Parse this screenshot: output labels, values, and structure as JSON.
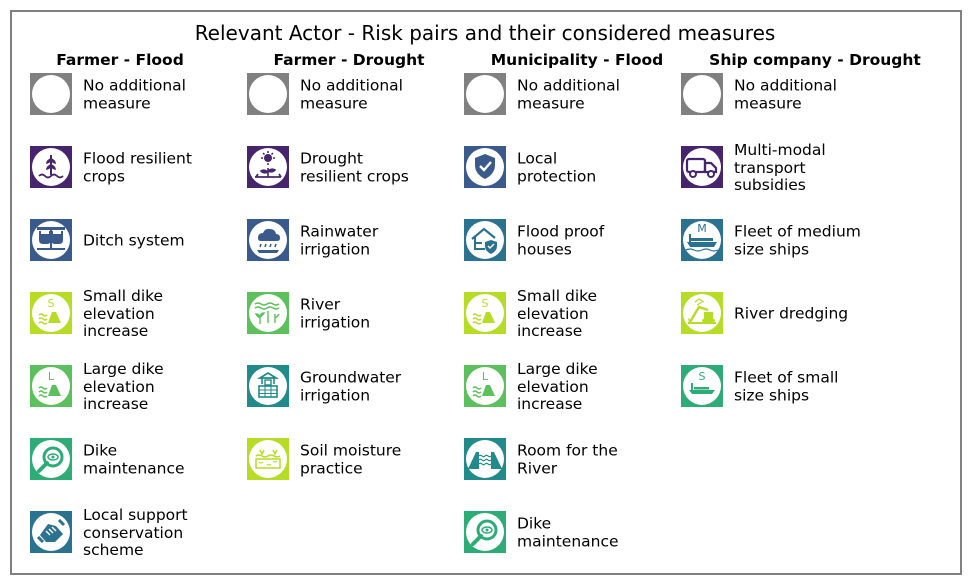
{
  "title": "Relevant Actor - Risk pairs and their considered measures",
  "colors": {
    "none": "#808080",
    "purple": "#46256d",
    "blue": "#3b5a8c",
    "teal": "#2b7290",
    "tealgreen": "#218a8a",
    "green": "#2eac78",
    "lightgreen": "#5cc05c",
    "yellow": "#b6dc26"
  },
  "columns": [
    {
      "header": "Farmer - Flood",
      "measures": [
        {
          "label": "No additional\nmeasure",
          "color": "#808080",
          "icon": "empty-circle-icon"
        },
        {
          "label": "Flood resilient\ncrops",
          "color": "#46256d",
          "icon": "wheat-water-icon"
        },
        {
          "label": "Ditch system",
          "color": "#3b5a8c",
          "icon": "ditch-icon"
        },
        {
          "label": "Small dike\nelevation\nincrease",
          "color": "#b6dc26",
          "icon": "small-dike-icon",
          "glyph": "S"
        },
        {
          "label": "Large dike\nelevation\nincrease",
          "color": "#5cc05c",
          "icon": "large-dike-icon",
          "glyph": "L"
        },
        {
          "label": "Dike\nmaintenance",
          "color": "#2eac78",
          "icon": "dike-inspection-icon"
        },
        {
          "label": "Local support\nconservation\nscheme",
          "color": "#2b7290",
          "icon": "handshake-icon"
        }
      ]
    },
    {
      "header": "Farmer - Drought",
      "measures": [
        {
          "label": "No additional\nmeasure",
          "color": "#808080",
          "icon": "empty-circle-icon"
        },
        {
          "label": "Drought\nresilient crops",
          "color": "#46256d",
          "icon": "sun-plant-icon"
        },
        {
          "label": "Rainwater\nirrigation",
          "color": "#3b5a8c",
          "icon": "rain-cloud-icon"
        },
        {
          "label": "River\nirrigation",
          "color": "#5cc05c",
          "icon": "river-irrigation-icon"
        },
        {
          "label": "Groundwater\nirrigation",
          "color": "#218a8a",
          "icon": "well-icon"
        },
        {
          "label": "Soil moisture\npractice",
          "color": "#b6dc26",
          "icon": "soil-moisture-icon"
        }
      ]
    },
    {
      "header": "Municipality - Flood",
      "measures": [
        {
          "label": "No additional\nmeasure",
          "color": "#808080",
          "icon": "empty-circle-icon"
        },
        {
          "label": "Local\nprotection",
          "color": "#3b5a8c",
          "icon": "shield-check-icon"
        },
        {
          "label": "Flood proof\nhouses",
          "color": "#2b7290",
          "icon": "house-shield-icon"
        },
        {
          "label": "Small dike\nelevation\nincrease",
          "color": "#b6dc26",
          "icon": "small-dike-icon",
          "glyph": "S"
        },
        {
          "label": "Large dike\nelevation\nincrease",
          "color": "#5cc05c",
          "icon": "large-dike-icon",
          "glyph": "L"
        },
        {
          "label": "Room for the\nRiver",
          "color": "#218a8a",
          "icon": "room-for-river-icon"
        },
        {
          "label": "Dike\nmaintenance",
          "color": "#2eac78",
          "icon": "dike-inspection-icon"
        }
      ]
    },
    {
      "header": "Ship company - Drought",
      "measures": [
        {
          "label": "No additional\nmeasure",
          "color": "#808080",
          "icon": "empty-circle-icon"
        },
        {
          "label": "Multi-modal\ntransport\nsubsidies",
          "color": "#46256d",
          "icon": "truck-icon"
        },
        {
          "label": "Fleet of medium\nsize ships",
          "color": "#2b7290",
          "icon": "medium-ship-icon",
          "glyph": "M"
        },
        {
          "label": "River dredging",
          "color": "#b6dc26",
          "icon": "excavator-icon"
        },
        {
          "label": "Fleet of small\nsize ships",
          "color": "#2eac78",
          "icon": "small-ship-icon",
          "glyph": "S"
        }
      ]
    }
  ]
}
